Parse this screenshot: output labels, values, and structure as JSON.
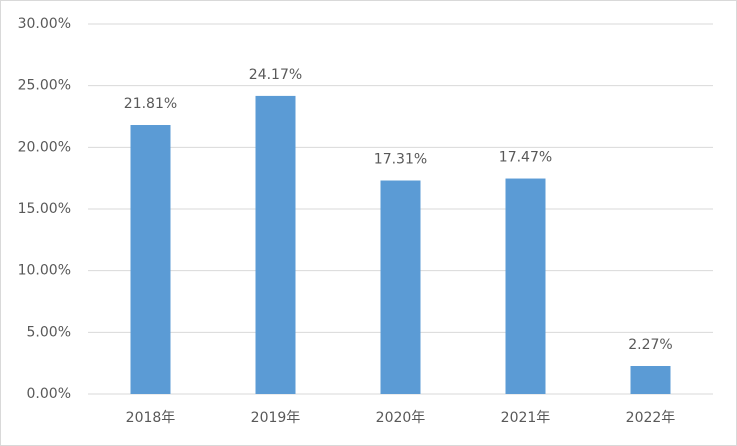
{
  "chart_data": {
    "type": "bar",
    "categories": [
      "2018年",
      "2019年",
      "2020年",
      "2021年",
      "2022年"
    ],
    "values": [
      21.81,
      24.17,
      17.31,
      17.47,
      2.27
    ],
    "value_labels": [
      "21.81%",
      "24.17%",
      "17.31%",
      "17.47%",
      "2.27%"
    ],
    "color": "#5b9bd5",
    "ylim": [
      0,
      30
    ],
    "yticks": [
      {
        "value": 0,
        "label": "0.00%"
      },
      {
        "value": 5,
        "label": "5.00%"
      },
      {
        "value": 10,
        "label": "10.00%"
      },
      {
        "value": 15,
        "label": "15.00%"
      },
      {
        "value": 20,
        "label": "20.00%"
      },
      {
        "value": 25,
        "label": "25.00%"
      },
      {
        "value": 30,
        "label": "30.00%"
      }
    ],
    "grid": true
  }
}
